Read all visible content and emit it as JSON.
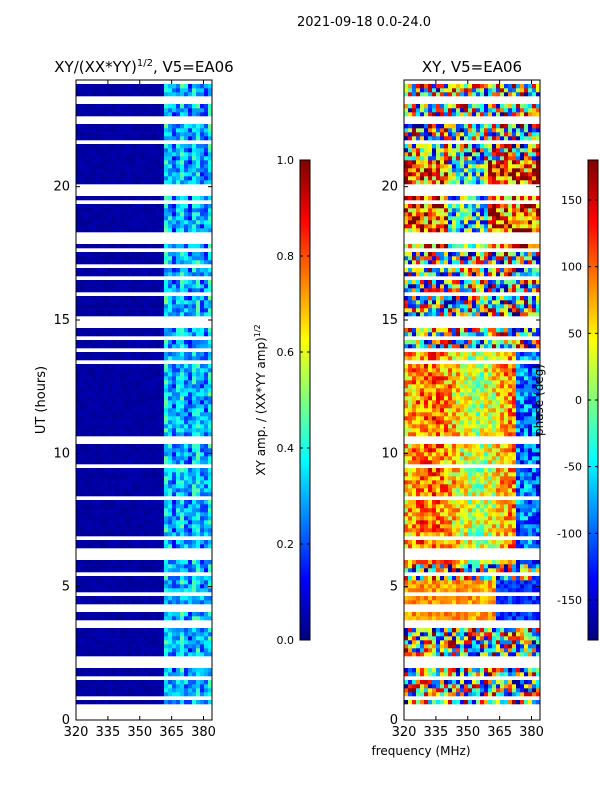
{
  "suptitle": "2021-09-18 0.0-24.0",
  "xlabel_shared": "frequency (MHz)",
  "colors": {
    "jet": [
      "#00007f",
      "#0000ff",
      "#007fff",
      "#00ffff",
      "#7fff7f",
      "#ffff00",
      "#ff7f00",
      "#ff0000",
      "#7f0000"
    ],
    "flagged": "#ffffff"
  },
  "chart_data": [
    {
      "type": "heatmap",
      "id": "amp",
      "title_main": "XY/(XX*YY)",
      "title_sup": "1/2",
      "title_tail": ", V5=EA06",
      "xlabel": "",
      "ylabel": "UT (hours)",
      "xlim": [
        320,
        384
      ],
      "ylim": [
        0,
        24
      ],
      "xticks": [
        320,
        335,
        350,
        365,
        380
      ],
      "yticks": [
        0,
        5,
        10,
        15,
        20
      ],
      "colorbar": {
        "label_main": "XY amp. / (XX*YY amp)",
        "label_sup": "1/2",
        "range": [
          0.0,
          1.0
        ],
        "ticks": [
          "0.0",
          "0.2",
          "0.4",
          "0.6",
          "0.8",
          "1.0"
        ]
      },
      "description_values": {
        "low_band_mhz": [
          320,
          361
        ],
        "low_band_level": 0.02,
        "high_band_mhz": [
          361,
          384
        ],
        "high_band_level_range": [
          0.1,
          0.5
        ]
      }
    },
    {
      "type": "heatmap",
      "id": "phase",
      "title_main": "XY, V5=EA06",
      "xlabel": "",
      "ylabel": "",
      "xlim": [
        320,
        384
      ],
      "ylim": [
        0,
        24
      ],
      "xticks": [
        320,
        335,
        350,
        365,
        380
      ],
      "yticks": [
        0,
        5,
        10,
        15,
        20
      ],
      "colorbar": {
        "label_main": "phase (deg)",
        "range": [
          -180,
          180
        ],
        "ticks": [
          "-150",
          "-100",
          "-50",
          "0",
          "50",
          "100",
          "150"
        ],
        "tick_values": [
          -150,
          -100,
          -50,
          0,
          50,
          100,
          150
        ]
      },
      "description_values": {
        "phase_range_deg": [
          -180,
          180
        ]
      }
    }
  ]
}
